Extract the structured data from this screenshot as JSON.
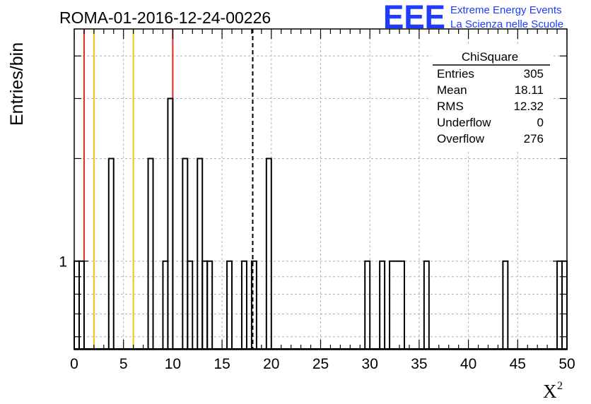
{
  "header": {
    "run_title": "ROMA-01-2016-12-24-00226",
    "logo": "EEE",
    "logo_line1": "Extreme Energy Events",
    "logo_line2": "La Scienza nelle Scuole"
  },
  "stats_box": {
    "title": "ChiSquare",
    "rows": [
      {
        "label": "Entries",
        "value": "305"
      },
      {
        "label": "Mean",
        "value": "18.11"
      },
      {
        "label": "RMS",
        "value": "12.32"
      },
      {
        "label": "Underflow",
        "value": "0"
      },
      {
        "label": "Overflow",
        "value": "276"
      }
    ]
  },
  "colors": {
    "histogram": "#000000",
    "grid": "#b3b3b3",
    "red_line": "#e8251f",
    "yellow_line": "#f5c21b",
    "mean_line": "#000000",
    "logo": "#1f3cff"
  },
  "chart_data": {
    "type": "bar",
    "title": "ROMA-01-2016-12-24-00226",
    "xlabel": "X",
    "xlabel_superscript": "2",
    "ylabel": "Entries/bin",
    "xlim": [
      0,
      50
    ],
    "ylim": [
      0.55,
      4.8
    ],
    "yscale": "log",
    "grid": true,
    "bin_width": 0.5,
    "x_ticks": [
      "0",
      "5",
      "10",
      "15",
      "20",
      "25",
      "30",
      "35",
      "40",
      "45",
      "50"
    ],
    "y_ticks": [
      "1"
    ],
    "bins": [
      {
        "x0": 0.0,
        "x1": 0.5,
        "count": 1
      },
      {
        "x0": 0.5,
        "x1": 1.0,
        "count": 1
      },
      {
        "x0": 3.5,
        "x1": 4.0,
        "count": 2
      },
      {
        "x0": 7.5,
        "x1": 8.0,
        "count": 2
      },
      {
        "x0": 9.0,
        "x1": 9.5,
        "count": 1
      },
      {
        "x0": 9.5,
        "x1": 10.0,
        "count": 3
      },
      {
        "x0": 11.0,
        "x1": 11.5,
        "count": 2
      },
      {
        "x0": 11.5,
        "x1": 12.0,
        "count": 1
      },
      {
        "x0": 12.5,
        "x1": 13.0,
        "count": 2
      },
      {
        "x0": 13.0,
        "x1": 13.5,
        "count": 1
      },
      {
        "x0": 13.5,
        "x1": 14.0,
        "count": 1
      },
      {
        "x0": 15.5,
        "x1": 16.0,
        "count": 1
      },
      {
        "x0": 17.0,
        "x1": 17.5,
        "count": 1
      },
      {
        "x0": 18.0,
        "x1": 18.5,
        "count": 1
      },
      {
        "x0": 19.5,
        "x1": 20.0,
        "count": 2
      },
      {
        "x0": 29.5,
        "x1": 30.0,
        "count": 1
      },
      {
        "x0": 31.0,
        "x1": 31.5,
        "count": 1
      },
      {
        "x0": 32.0,
        "x1": 33.5,
        "count": 1
      },
      {
        "x0": 35.5,
        "x1": 36.0,
        "count": 1
      },
      {
        "x0": 43.5,
        "x1": 44.0,
        "count": 1
      },
      {
        "x0": 49.0,
        "x1": 49.5,
        "count": 1
      },
      {
        "x0": 49.5,
        "x1": 50.0,
        "count": 1
      }
    ],
    "vertical_lines": [
      {
        "x": 1,
        "color": "red",
        "style": "solid"
      },
      {
        "x": 2,
        "color": "yellow",
        "style": "solid"
      },
      {
        "x": 6,
        "color": "yellow",
        "style": "solid"
      },
      {
        "x": 10,
        "color": "red",
        "style": "solid"
      },
      {
        "x": 18.11,
        "color": "black",
        "style": "dashed"
      }
    ]
  }
}
